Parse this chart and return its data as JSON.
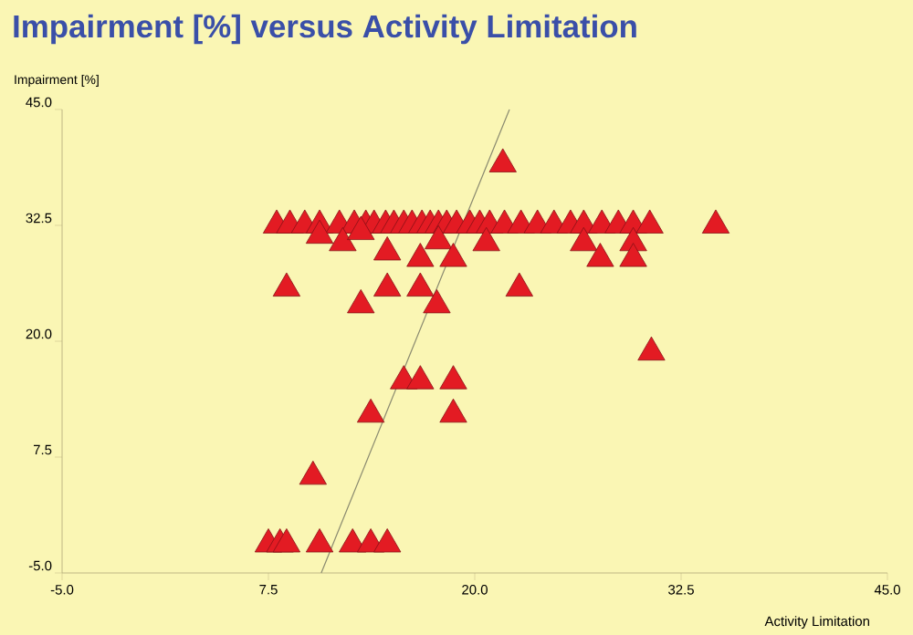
{
  "chart_data": {
    "type": "scatter",
    "title": "Impairment [%] versus Activity Limitation",
    "xlabel": "Activity Limitation",
    "ylabel": "Impairment [%]",
    "xlim": [
      -5,
      45
    ],
    "ylim": [
      -5,
      45
    ],
    "xticks": [
      {
        "value": -5,
        "label": "-5.0"
      },
      {
        "value": 7.5,
        "label": "7.5"
      },
      {
        "value": 20,
        "label": "20.0"
      },
      {
        "value": 32.5,
        "label": "32.5"
      },
      {
        "value": 45,
        "label": "45.0"
      }
    ],
    "yticks": [
      {
        "value": -5,
        "label": "-5.0"
      },
      {
        "value": 7.5,
        "label": "7.5"
      },
      {
        "value": 20,
        "label": "20.0"
      },
      {
        "value": 32.5,
        "label": "32.5"
      },
      {
        "value": 45,
        "label": "45.0"
      }
    ],
    "series": [
      {
        "color": "#e31b23",
        "marker": "triangle",
        "x": [
          8.0,
          8.8,
          9.7,
          10.6,
          11.8,
          12.7,
          13.4,
          13.9,
          14.6,
          15.1,
          15.7,
          16.2,
          16.8,
          17.3,
          17.8,
          18.3,
          18.9,
          19.7,
          20.3,
          20.9,
          21.8,
          22.8,
          23.8,
          24.8,
          25.8,
          26.6,
          27.7,
          28.7,
          29.6,
          30.6,
          34.6,
          10.6,
          12.0,
          13.1,
          14.7,
          16.7,
          17.8,
          18.7,
          8.6,
          14.7,
          16.7,
          13.1,
          17.7,
          21.7,
          20.7,
          26.6,
          27.6,
          29.6,
          29.6,
          22.7,
          30.7,
          15.7,
          16.7,
          18.7,
          13.7,
          18.7,
          10.2,
          7.5,
          8.2,
          8.6,
          10.6,
          12.6,
          13.7,
          14.7
        ],
        "values": [
          32.5,
          32.5,
          32.5,
          32.5,
          32.5,
          32.5,
          32.5,
          32.5,
          32.5,
          32.5,
          32.5,
          32.5,
          32.5,
          32.5,
          32.5,
          32.5,
          32.5,
          32.5,
          32.5,
          32.5,
          32.5,
          32.5,
          32.5,
          32.5,
          32.5,
          32.5,
          32.5,
          32.5,
          32.5,
          32.5,
          32.5,
          31.4,
          30.6,
          31.8,
          29.6,
          28.9,
          30.8,
          28.9,
          25.7,
          25.7,
          25.7,
          23.9,
          23.9,
          39.1,
          30.6,
          30.6,
          28.9,
          30.6,
          28.9,
          25.7,
          18.8,
          15.7,
          15.7,
          15.7,
          12.1,
          12.1,
          5.4,
          -1.9,
          -1.9,
          -1.9,
          -1.9,
          -1.9,
          -1.9,
          -1.9
        ]
      },
      {
        "type": "line",
        "color": "#8a8a70",
        "x": [
          10.7,
          22.1
        ],
        "values": [
          -5,
          45
        ]
      }
    ]
  }
}
